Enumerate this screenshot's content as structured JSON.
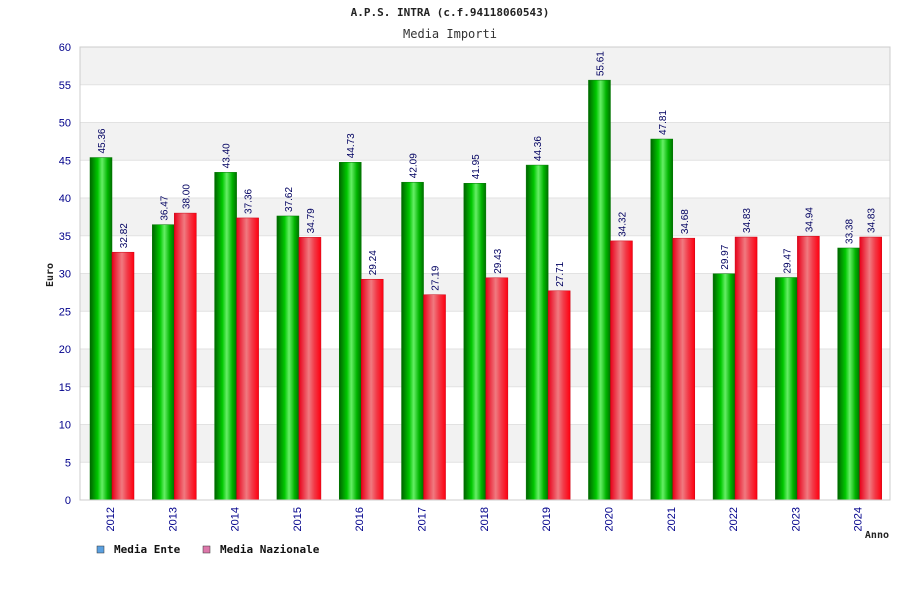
{
  "chart_data": {
    "type": "bar",
    "title": "A.P.S. INTRA (c.f.94118060543)",
    "subtitle": "Media Importi",
    "xlabel": "Anno",
    "ylabel": "Euro",
    "ylim": [
      0,
      60
    ],
    "yticks": [
      0,
      5,
      10,
      15,
      20,
      25,
      30,
      35,
      40,
      45,
      50,
      55,
      60
    ],
    "grid": true,
    "legend_position": "bottom-left",
    "categories": [
      "2012",
      "2013",
      "2014",
      "2015",
      "2016",
      "2017",
      "2018",
      "2019",
      "2020",
      "2021",
      "2022",
      "2023",
      "2024"
    ],
    "series": [
      {
        "name": "Media Ente",
        "values": [
          45.36,
          36.47,
          43.4,
          37.62,
          44.73,
          42.09,
          41.95,
          44.36,
          55.61,
          47.81,
          29.97,
          29.47,
          33.38
        ],
        "labels": [
          "45.36",
          "36.47",
          "43.40",
          "37.62",
          "44.73",
          "42.09",
          "41.95",
          "44.36",
          "55.61",
          "47.81",
          "29.97",
          "29.47",
          "33.38"
        ],
        "color": "#00b000",
        "legend_color": "#5aa0e0"
      },
      {
        "name": "Media Nazionale",
        "values": [
          32.82,
          38.0,
          37.36,
          34.79,
          29.24,
          27.19,
          29.43,
          27.71,
          34.32,
          34.68,
          34.83,
          34.94,
          34.83
        ],
        "labels": [
          "32.82",
          "38.00",
          "37.36",
          "34.79",
          "29.24",
          "27.19",
          "29.43",
          "27.71",
          "34.32",
          "34.68",
          "34.83",
          "34.94",
          "34.83"
        ],
        "color": "#ee1c24",
        "legend_color": "#dd77aa"
      }
    ]
  }
}
